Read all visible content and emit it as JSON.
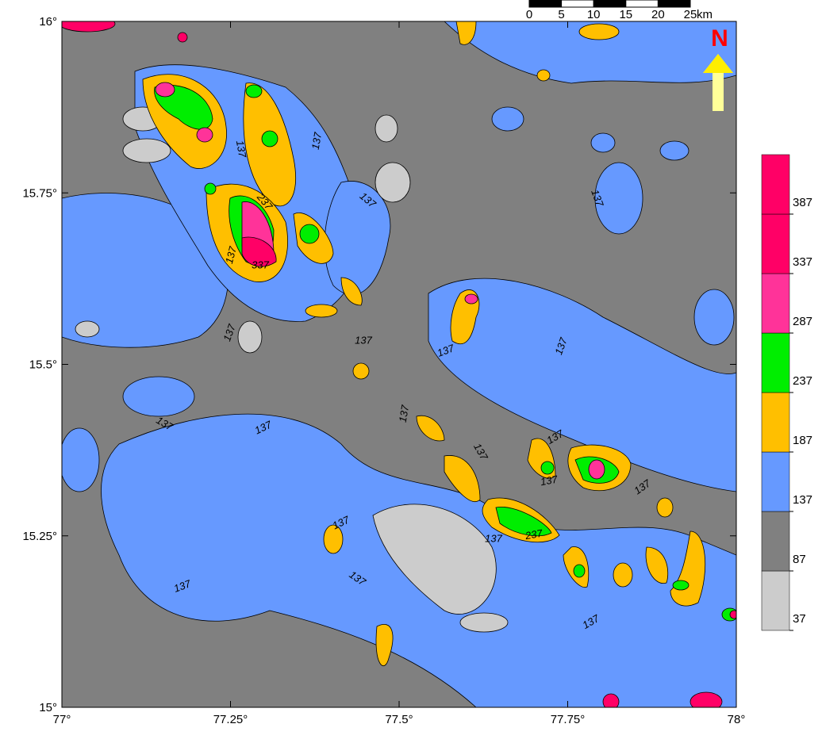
{
  "map": {
    "xlim": [
      77,
      78
    ],
    "ylim": [
      15,
      16
    ],
    "xticks": [
      {
        "value": 77,
        "label": "77°"
      },
      {
        "value": 77.25,
        "label": "77.25°"
      },
      {
        "value": 77.5,
        "label": "77.5°"
      },
      {
        "value": 77.75,
        "label": "77.75°"
      },
      {
        "value": 78,
        "label": "78°"
      }
    ],
    "yticks": [
      {
        "value": 15,
        "label": "15°"
      },
      {
        "value": 15.25,
        "label": "15.25°"
      },
      {
        "value": 15.5,
        "label": "15.5°"
      },
      {
        "value": 15.75,
        "label": "15.75°"
      },
      {
        "value": 16,
        "label": "16°"
      }
    ],
    "legend": {
      "levels": [
        37,
        87,
        137,
        187,
        237,
        287,
        337,
        387
      ],
      "colors": [
        "#cccccc",
        "#808080",
        "#6699ff",
        "#ffbf00",
        "#00ee00",
        "#ff3399",
        "#ff0066",
        "#ff0066"
      ]
    },
    "contour_labels": [
      "137",
      "137",
      "237",
      "137",
      "137",
      "137",
      "337",
      "137",
      "137",
      "137",
      "137",
      "137",
      "137",
      "137",
      "137",
      "137",
      "137",
      "137",
      "237",
      "137",
      "137",
      "137",
      "137",
      "137"
    ],
    "scale_bar": {
      "ticks": [
        0,
        5,
        10,
        15,
        20,
        25
      ],
      "unit": "km"
    },
    "north": "N"
  }
}
